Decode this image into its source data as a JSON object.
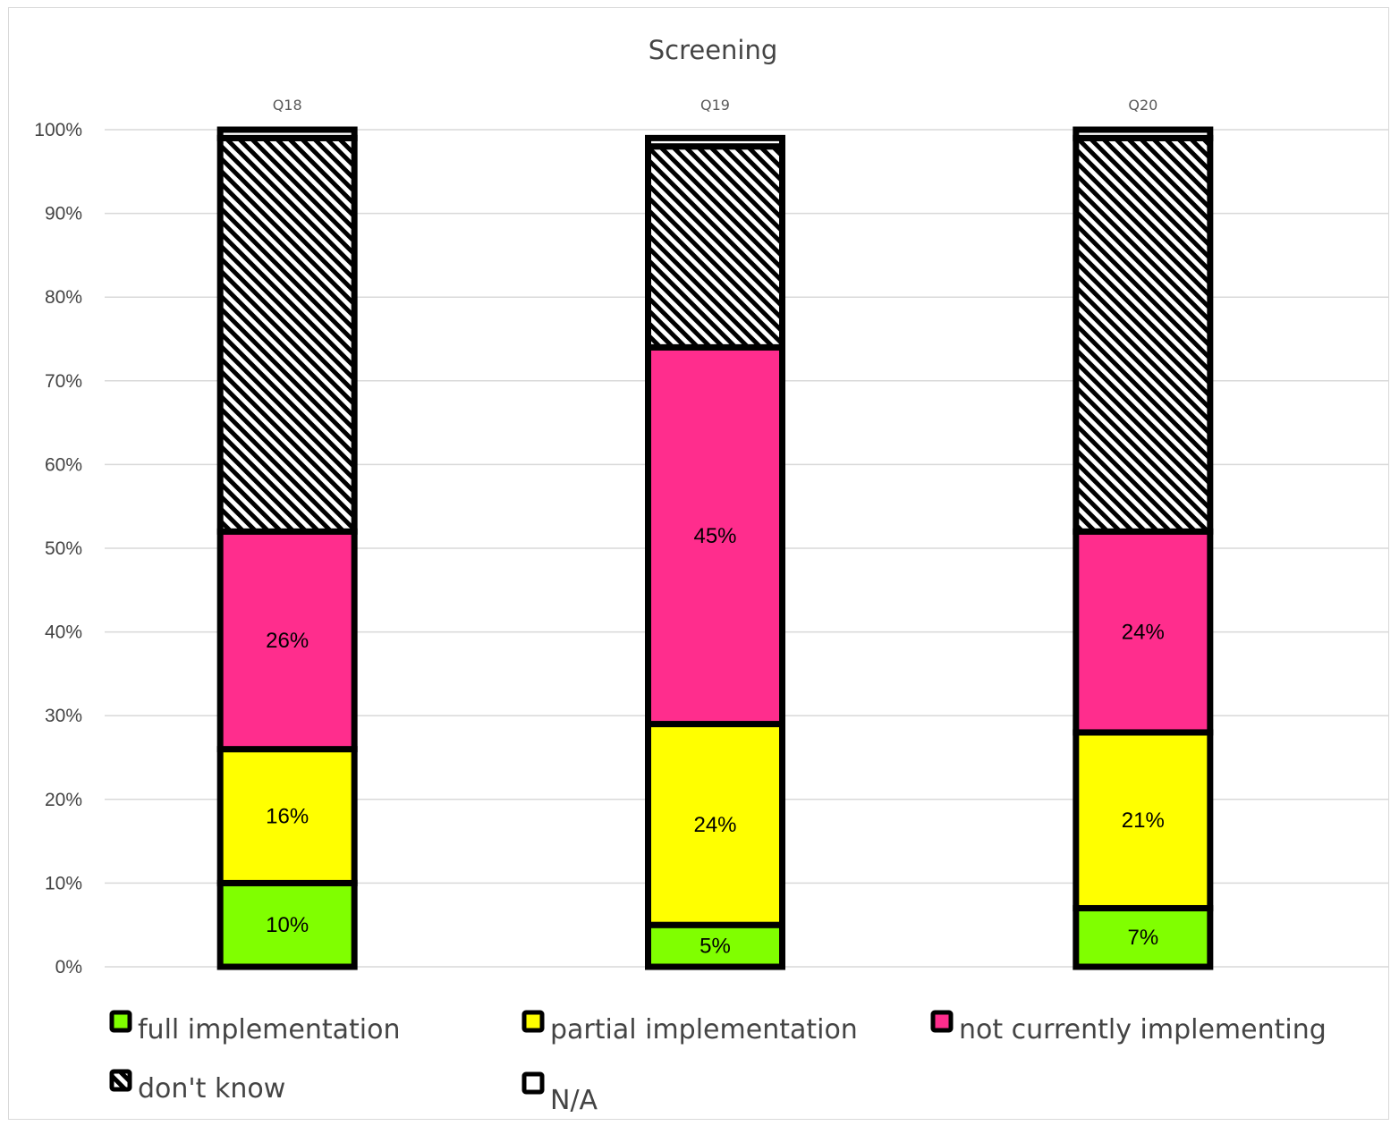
{
  "chart_data": {
    "type": "bar",
    "stacked": true,
    "title": "Screening",
    "categories": [
      "Q18",
      "Q19",
      "Q20"
    ],
    "series": [
      {
        "name": "full implementation",
        "values": [
          10,
          5,
          7
        ],
        "labels": [
          "10%",
          "5%",
          "7%"
        ],
        "color": "#80ff00",
        "pattern": "solid"
      },
      {
        "name": "partial implementation",
        "values": [
          16,
          24,
          21
        ],
        "labels": [
          "16%",
          "24%",
          "21%"
        ],
        "color": "#ffff00",
        "pattern": "solid"
      },
      {
        "name": "not currently implementing",
        "values": [
          26,
          45,
          24
        ],
        "labels": [
          "26%",
          "45%",
          "24%"
        ],
        "color": "#ff2d8d",
        "pattern": "solid"
      },
      {
        "name": "don't know",
        "values": [
          47,
          24,
          47
        ],
        "color": "#ffffff",
        "pattern": "diagonal-hatch"
      },
      {
        "name": "N/A",
        "values": [
          1,
          1,
          1
        ],
        "color": "#ffffff",
        "pattern": "solid"
      }
    ],
    "ylim": [
      0,
      100
    ],
    "yticks": [
      "0%",
      "10%",
      "20%",
      "30%",
      "40%",
      "50%",
      "60%",
      "70%",
      "80%",
      "90%",
      "100%"
    ],
    "grid": true,
    "category_labels_position": "top",
    "legend_position": "bottom",
    "bar_border_color": "#000000",
    "gridline_color": "#d9d9d9"
  }
}
